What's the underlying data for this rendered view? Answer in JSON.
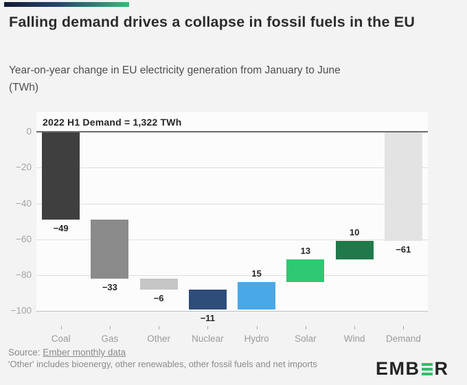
{
  "header": {
    "title": "Falling demand drives a collapse in fossil fuels in the EU",
    "subtitle": "Year-on-year change in EU electricity generation from January to June (TWh)"
  },
  "brand_colors": {
    "gradient_start": "#131b33",
    "gradient_end": "#3db877"
  },
  "chart_data": {
    "type": "bar",
    "subtype": "waterfall",
    "annotation": "2022 H1 Demand = 1,322 TWh",
    "categories": [
      "Coal",
      "Gas",
      "Other",
      "Nuclear",
      "Hydro",
      "Solar",
      "Wind",
      "Demand"
    ],
    "values": [
      -49,
      -33,
      -6,
      -11,
      15,
      13,
      10,
      -61
    ],
    "bars": [
      {
        "category": "Coal",
        "value": -49,
        "label": "−49",
        "color": "#3f3f3f",
        "total": false
      },
      {
        "category": "Gas",
        "value": -33,
        "label": "−33",
        "color": "#8b8b8b",
        "total": false
      },
      {
        "category": "Other",
        "value": -6,
        "label": "−6",
        "color": "#c6c6c6",
        "total": false
      },
      {
        "category": "Nuclear",
        "value": -11,
        "label": "−11",
        "color": "#2e4d79",
        "total": false
      },
      {
        "category": "Hydro",
        "value": 15,
        "label": "15",
        "color": "#49a8e8",
        "total": false
      },
      {
        "category": "Solar",
        "value": 13,
        "label": "13",
        "color": "#2fc873",
        "total": false
      },
      {
        "category": "Wind",
        "value": 10,
        "label": "10",
        "color": "#20794a",
        "total": false
      },
      {
        "category": "Demand",
        "value": -61,
        "label": "−61",
        "color": "#e3e3e3",
        "total": true
      }
    ],
    "ylabel": "",
    "xlabel": "",
    "ylim": [
      -100,
      0
    ],
    "yticks": [
      {
        "value": 0,
        "label": "0"
      },
      {
        "value": -20,
        "label": "−20"
      },
      {
        "value": -40,
        "label": "−40"
      },
      {
        "value": -60,
        "label": "−60"
      },
      {
        "value": -80,
        "label": "−80"
      },
      {
        "value": -100,
        "label": "−100"
      }
    ],
    "grid": true,
    "legend": false
  },
  "footer": {
    "source_prefix": "Source: ",
    "source_link": "Ember monthly data",
    "note": "'Other' includes bioenergy, other renewables, other fossil fuels and net imports",
    "logo": {
      "part1": "EMB",
      "part2": "R",
      "accent_color": "#2fbe69"
    }
  }
}
